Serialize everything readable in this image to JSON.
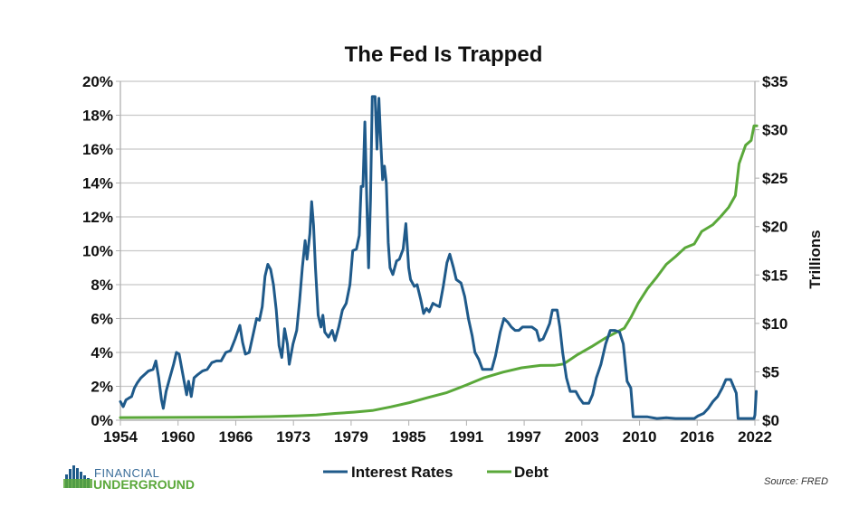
{
  "chart_data": {
    "type": "line",
    "title": "The Fed Is Trapped",
    "xlabel": "",
    "ylabel_left": "",
    "ylabel_right": "Trillions",
    "x_range": [
      1954,
      2022
    ],
    "x_tick_labels": [
      "1954",
      "1960",
      "1966",
      "1973",
      "1979",
      "1985",
      "1991",
      "1997",
      "2003",
      "2010",
      "2016",
      "2022"
    ],
    "ylim_left": [
      0,
      20
    ],
    "y_left_tick_labels": [
      "0%",
      "2%",
      "4%",
      "6%",
      "8%",
      "10%",
      "12%",
      "14%",
      "16%",
      "18%",
      "20%"
    ],
    "ylim_right": [
      0,
      35
    ],
    "y_right_tick_labels": [
      "$0",
      "$5",
      "$10",
      "$15",
      "$20",
      "$25",
      "$30",
      "$35"
    ],
    "grid": true,
    "legend_position": "bottom-center",
    "series": [
      {
        "name": "Interest Rates",
        "axis": "left",
        "color": "#1f5a8a",
        "points": [
          [
            1954.0,
            1.1
          ],
          [
            1954.3,
            0.8
          ],
          [
            1954.6,
            1.2
          ],
          [
            1954.9,
            1.3
          ],
          [
            1955.2,
            1.4
          ],
          [
            1955.5,
            1.9
          ],
          [
            1955.8,
            2.2
          ],
          [
            1956.2,
            2.5
          ],
          [
            1956.6,
            2.7
          ],
          [
            1957.0,
            2.9
          ],
          [
            1957.5,
            3.0
          ],
          [
            1957.8,
            3.5
          ],
          [
            1958.1,
            2.5
          ],
          [
            1958.4,
            1.2
          ],
          [
            1958.6,
            0.7
          ],
          [
            1958.9,
            1.7
          ],
          [
            1959.3,
            2.5
          ],
          [
            1959.7,
            3.3
          ],
          [
            1960.0,
            4.0
          ],
          [
            1960.3,
            3.9
          ],
          [
            1960.6,
            3.0
          ],
          [
            1960.9,
            2.1
          ],
          [
            1961.1,
            1.5
          ],
          [
            1961.3,
            2.3
          ],
          [
            1961.6,
            1.4
          ],
          [
            1961.9,
            2.5
          ],
          [
            1962.3,
            2.7
          ],
          [
            1962.8,
            2.9
          ],
          [
            1963.3,
            3.0
          ],
          [
            1963.8,
            3.4
          ],
          [
            1964.3,
            3.5
          ],
          [
            1964.8,
            3.5
          ],
          [
            1965.3,
            4.0
          ],
          [
            1965.8,
            4.1
          ],
          [
            1966.3,
            4.8
          ],
          [
            1966.8,
            5.6
          ],
          [
            1967.1,
            4.6
          ],
          [
            1967.4,
            3.9
          ],
          [
            1967.8,
            4.0
          ],
          [
            1968.2,
            5.0
          ],
          [
            1968.6,
            6.0
          ],
          [
            1968.9,
            5.9
          ],
          [
            1969.2,
            6.7
          ],
          [
            1969.5,
            8.5
          ],
          [
            1969.8,
            9.2
          ],
          [
            1970.1,
            8.9
          ],
          [
            1970.4,
            8.0
          ],
          [
            1970.7,
            6.5
          ],
          [
            1971.0,
            4.4
          ],
          [
            1971.3,
            3.7
          ],
          [
            1971.6,
            5.4
          ],
          [
            1971.9,
            4.5
          ],
          [
            1972.1,
            3.3
          ],
          [
            1972.5,
            4.5
          ],
          [
            1972.9,
            5.3
          ],
          [
            1973.2,
            7.0
          ],
          [
            1973.5,
            9.0
          ],
          [
            1973.8,
            10.6
          ],
          [
            1974.0,
            9.5
          ],
          [
            1974.3,
            11.0
          ],
          [
            1974.5,
            12.9
          ],
          [
            1974.7,
            11.5
          ],
          [
            1974.9,
            9.0
          ],
          [
            1975.2,
            6.2
          ],
          [
            1975.5,
            5.5
          ],
          [
            1975.7,
            6.2
          ],
          [
            1975.9,
            5.2
          ],
          [
            1976.3,
            4.9
          ],
          [
            1976.7,
            5.3
          ],
          [
            1977.0,
            4.7
          ],
          [
            1977.4,
            5.5
          ],
          [
            1977.8,
            6.5
          ],
          [
            1978.2,
            6.9
          ],
          [
            1978.6,
            8.0
          ],
          [
            1978.9,
            10.0
          ],
          [
            1979.3,
            10.1
          ],
          [
            1979.6,
            10.9
          ],
          [
            1979.8,
            13.8
          ],
          [
            1980.0,
            13.8
          ],
          [
            1980.2,
            17.6
          ],
          [
            1980.4,
            13.0
          ],
          [
            1980.6,
            9.0
          ],
          [
            1980.8,
            13.0
          ],
          [
            1981.0,
            19.1
          ],
          [
            1981.3,
            19.1
          ],
          [
            1981.5,
            16.0
          ],
          [
            1981.7,
            19.0
          ],
          [
            1981.9,
            16.5
          ],
          [
            1982.1,
            14.2
          ],
          [
            1982.3,
            15.0
          ],
          [
            1982.5,
            14.0
          ],
          [
            1982.7,
            10.5
          ],
          [
            1982.9,
            9.0
          ],
          [
            1983.2,
            8.6
          ],
          [
            1983.6,
            9.4
          ],
          [
            1983.9,
            9.5
          ],
          [
            1984.3,
            10.1
          ],
          [
            1984.6,
            11.6
          ],
          [
            1984.9,
            9.0
          ],
          [
            1985.1,
            8.3
          ],
          [
            1985.5,
            7.9
          ],
          [
            1985.8,
            8.0
          ],
          [
            1986.2,
            7.1
          ],
          [
            1986.5,
            6.3
          ],
          [
            1986.8,
            6.6
          ],
          [
            1987.1,
            6.4
          ],
          [
            1987.5,
            6.9
          ],
          [
            1987.8,
            6.8
          ],
          [
            1988.2,
            6.7
          ],
          [
            1988.6,
            7.9
          ],
          [
            1989.0,
            9.3
          ],
          [
            1989.3,
            9.8
          ],
          [
            1989.7,
            9.0
          ],
          [
            1990.0,
            8.3
          ],
          [
            1990.5,
            8.1
          ],
          [
            1990.9,
            7.3
          ],
          [
            1991.3,
            6.0
          ],
          [
            1991.7,
            5.0
          ],
          [
            1992.0,
            4.0
          ],
          [
            1992.4,
            3.6
          ],
          [
            1992.8,
            3.0
          ],
          [
            1993.3,
            3.0
          ],
          [
            1993.8,
            3.0
          ],
          [
            1994.2,
            3.8
          ],
          [
            1994.7,
            5.2
          ],
          [
            1995.1,
            6.0
          ],
          [
            1995.5,
            5.8
          ],
          [
            1995.9,
            5.5
          ],
          [
            1996.3,
            5.3
          ],
          [
            1996.7,
            5.3
          ],
          [
            1997.1,
            5.5
          ],
          [
            1997.6,
            5.5
          ],
          [
            1998.1,
            5.5
          ],
          [
            1998.6,
            5.3
          ],
          [
            1998.9,
            4.7
          ],
          [
            1999.3,
            4.8
          ],
          [
            1999.7,
            5.3
          ],
          [
            2000.0,
            5.7
          ],
          [
            2000.3,
            6.5
          ],
          [
            2000.8,
            6.5
          ],
          [
            2001.1,
            5.5
          ],
          [
            2001.4,
            4.0
          ],
          [
            2001.8,
            2.5
          ],
          [
            2002.2,
            1.7
          ],
          [
            2002.8,
            1.7
          ],
          [
            2003.2,
            1.3
          ],
          [
            2003.6,
            1.0
          ],
          [
            2004.2,
            1.0
          ],
          [
            2004.6,
            1.5
          ],
          [
            2005.0,
            2.5
          ],
          [
            2005.5,
            3.3
          ],
          [
            2006.0,
            4.5
          ],
          [
            2006.5,
            5.3
          ],
          [
            2007.0,
            5.3
          ],
          [
            2007.5,
            5.2
          ],
          [
            2007.9,
            4.5
          ],
          [
            2008.3,
            2.3
          ],
          [
            2008.7,
            1.9
          ],
          [
            2008.95,
            0.2
          ],
          [
            2009.5,
            0.2
          ],
          [
            2010.5,
            0.2
          ],
          [
            2011.5,
            0.1
          ],
          [
            2012.5,
            0.15
          ],
          [
            2013.5,
            0.1
          ],
          [
            2014.5,
            0.1
          ],
          [
            2015.5,
            0.1
          ],
          [
            2015.9,
            0.25
          ],
          [
            2016.5,
            0.4
          ],
          [
            2017.0,
            0.7
          ],
          [
            2017.5,
            1.1
          ],
          [
            2018.0,
            1.4
          ],
          [
            2018.5,
            1.9
          ],
          [
            2018.9,
            2.4
          ],
          [
            2019.4,
            2.4
          ],
          [
            2019.7,
            2.0
          ],
          [
            2020.0,
            1.6
          ],
          [
            2020.2,
            0.1
          ],
          [
            2020.8,
            0.1
          ],
          [
            2021.5,
            0.1
          ],
          [
            2021.9,
            0.1
          ],
          [
            2022.0,
            0.3
          ],
          [
            2022.15,
            1.7
          ]
        ]
      },
      {
        "name": "Debt",
        "axis": "right",
        "color": "#5aa83a",
        "points": [
          [
            1954.0,
            0.27
          ],
          [
            1960.0,
            0.29
          ],
          [
            1966.0,
            0.32
          ],
          [
            1970.0,
            0.37
          ],
          [
            1973.0,
            0.46
          ],
          [
            1975.0,
            0.53
          ],
          [
            1977.0,
            0.7
          ],
          [
            1979.0,
            0.83
          ],
          [
            1981.0,
            1.0
          ],
          [
            1983.0,
            1.38
          ],
          [
            1985.0,
            1.82
          ],
          [
            1987.0,
            2.35
          ],
          [
            1989.0,
            2.86
          ],
          [
            1991.0,
            3.6
          ],
          [
            1993.0,
            4.4
          ],
          [
            1995.0,
            4.97
          ],
          [
            1997.0,
            5.41
          ],
          [
            1999.0,
            5.66
          ],
          [
            2000.5,
            5.67
          ],
          [
            2001.5,
            5.81
          ],
          [
            2003.0,
            6.78
          ],
          [
            2004.5,
            7.6
          ],
          [
            2006.0,
            8.5
          ],
          [
            2007.0,
            9.0
          ],
          [
            2008.0,
            9.5
          ],
          [
            2008.7,
            10.6
          ],
          [
            2009.5,
            12.1
          ],
          [
            2010.5,
            13.6
          ],
          [
            2011.5,
            14.8
          ],
          [
            2012.5,
            16.1
          ],
          [
            2013.5,
            16.9
          ],
          [
            2014.5,
            17.8
          ],
          [
            2015.5,
            18.2
          ],
          [
            2016.3,
            19.5
          ],
          [
            2017.5,
            20.2
          ],
          [
            2018.3,
            21.0
          ],
          [
            2019.2,
            22.0
          ],
          [
            2019.9,
            23.2
          ],
          [
            2020.3,
            26.5
          ],
          [
            2021.0,
            28.4
          ],
          [
            2021.6,
            28.9
          ],
          [
            2021.9,
            30.4
          ],
          [
            2022.2,
            30.4
          ]
        ]
      }
    ],
    "source": "Source: FRED"
  },
  "branding": {
    "logo_line1": "FINANCIAL",
    "logo_line2": "UNDERGROUND",
    "logo_colors": {
      "blue": "#3b6e9a",
      "green": "#5aa83a"
    }
  }
}
